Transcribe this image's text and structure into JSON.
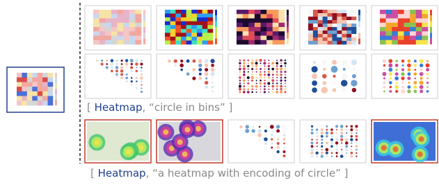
{
  "captions": [
    {
      "open": "[",
      "keyword": "Heatmap",
      "rest": ", “circle in bins” ]"
    },
    {
      "open": "[",
      "keyword": "Heatmap",
      "rest": ", “a heatmap with encoding of circle” ]"
    }
  ]
}
